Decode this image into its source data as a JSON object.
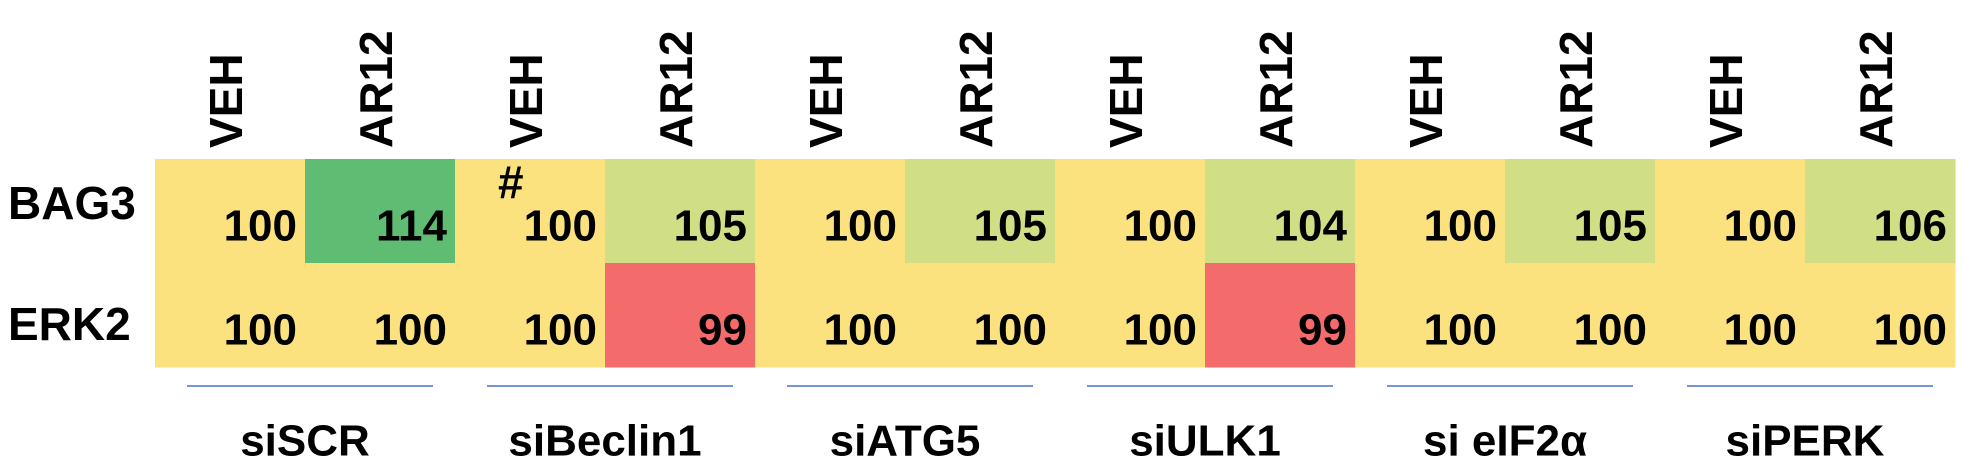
{
  "table": {
    "columns": [
      "VEH",
      "AR12",
      "VEH",
      "AR12",
      "VEH",
      "AR12",
      "VEH",
      "AR12",
      "VEH",
      "AR12",
      "VEH",
      "AR12"
    ],
    "groups": [
      "siSCR",
      "siBeclin1",
      "siATG5",
      "siULK1",
      "si eIF2α",
      "siPERK"
    ],
    "rows": [
      {
        "label": "BAG3",
        "values": [
          100,
          114,
          100,
          105,
          100,
          105,
          100,
          104,
          100,
          105,
          100,
          106
        ],
        "colors": [
          "#fbe27e",
          "#5fbd73",
          "#fbe27e",
          "#d0df86",
          "#fbe27e",
          "#d0df86",
          "#fbe27e",
          "#d0df86",
          "#fbe27e",
          "#d0df86",
          "#fbe27e",
          "#d0df86"
        ]
      },
      {
        "label": "ERK2",
        "values": [
          100,
          100,
          100,
          99,
          100,
          100,
          100,
          99,
          100,
          100,
          100,
          100
        ],
        "colors": [
          "#fbe27e",
          "#fbe27e",
          "#fbe27e",
          "#f46b6c",
          "#fbe27e",
          "#fbe27e",
          "#fbe27e",
          "#f46b6c",
          "#fbe27e",
          "#fbe27e",
          "#fbe27e",
          "#fbe27e"
        ]
      }
    ],
    "annotation": "#"
  }
}
